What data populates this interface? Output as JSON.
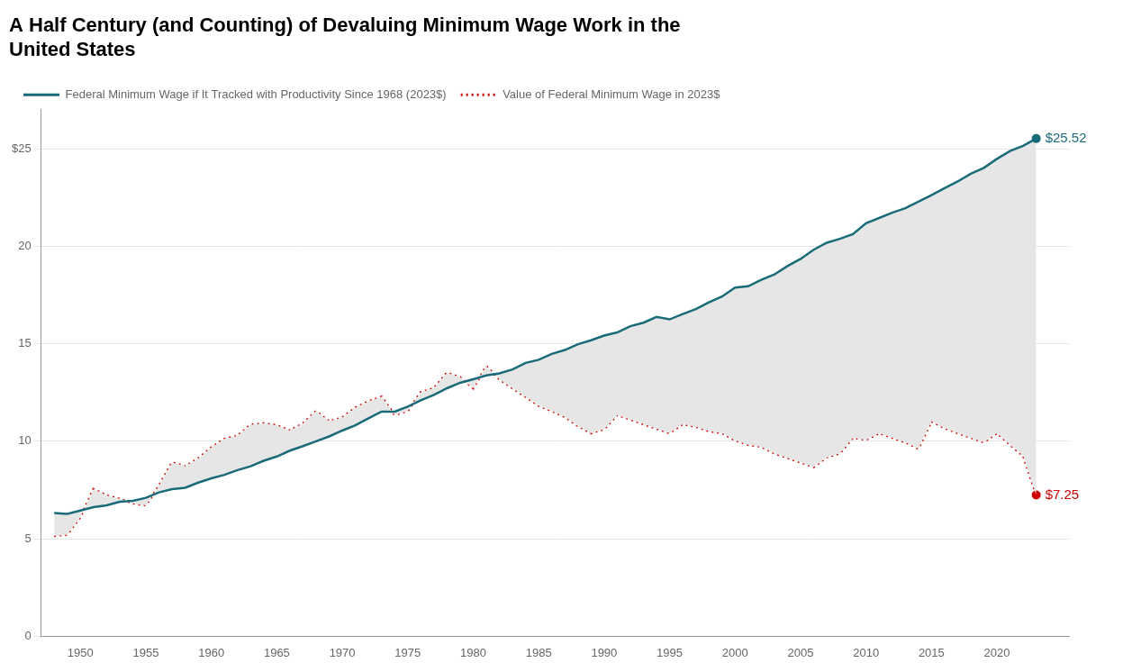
{
  "chart_data": {
    "type": "line",
    "title": "A Half Century (and Counting) of Devaluing Minimum Wage Work in the\nUnited States",
    "x": [
      1948,
      1949,
      1950,
      1951,
      1952,
      1953,
      1954,
      1955,
      1956,
      1957,
      1958,
      1959,
      1960,
      1961,
      1962,
      1963,
      1964,
      1965,
      1966,
      1967,
      1968,
      1969,
      1970,
      1971,
      1972,
      1973,
      1974,
      1975,
      1976,
      1977,
      1978,
      1979,
      1980,
      1981,
      1982,
      1983,
      1984,
      1985,
      1986,
      1987,
      1988,
      1989,
      1990,
      1991,
      1992,
      1993,
      1994,
      1995,
      1996,
      1997,
      1998,
      1999,
      2000,
      2001,
      2002,
      2003,
      2004,
      2005,
      2006,
      2007,
      2008,
      2009,
      2010,
      2011,
      2012,
      2013,
      2014,
      2015,
      2016,
      2017,
      2018,
      2019,
      2020,
      2021,
      2022,
      2023
    ],
    "series": [
      {
        "name": "Federal Minimum Wage if It Tracked with Productivity Since 1968 (2023$)",
        "color": "#1a6b7a",
        "line_style": "solid",
        "values": [
          6.32,
          6.28,
          6.45,
          6.62,
          6.72,
          6.9,
          6.95,
          7.1,
          7.38,
          7.55,
          7.62,
          7.88,
          8.1,
          8.28,
          8.52,
          8.72,
          9.0,
          9.22,
          9.52,
          9.75,
          10.0,
          10.25,
          10.55,
          10.82,
          11.18,
          11.52,
          11.52,
          11.78,
          12.1,
          12.38,
          12.72,
          13.0,
          13.18,
          13.38,
          13.48,
          13.68,
          14.02,
          14.18,
          14.48,
          14.68,
          14.98,
          15.18,
          15.42,
          15.58,
          15.9,
          16.08,
          16.38,
          16.25,
          16.52,
          16.78,
          17.12,
          17.42,
          17.88,
          17.95,
          18.28,
          18.55,
          18.98,
          19.35,
          19.82,
          20.18,
          20.38,
          20.62,
          21.18,
          21.45,
          21.72,
          21.95,
          22.28,
          22.62,
          22.98,
          23.32,
          23.72,
          24.02,
          24.48,
          24.88,
          25.15,
          25.52
        ]
      },
      {
        "name": "Value of Federal Minimum Wage in 2023$",
        "color": "#cc0000",
        "line_style": "dotted",
        "values": [
          5.15,
          5.22,
          6.12,
          7.55,
          7.22,
          7.05,
          6.82,
          6.72,
          7.72,
          8.92,
          8.72,
          9.12,
          9.68,
          10.12,
          10.28,
          10.85,
          10.92,
          10.82,
          10.55,
          10.92,
          11.55,
          11.02,
          11.22,
          11.72,
          12.05,
          12.28,
          11.35,
          11.55,
          12.52,
          12.72,
          13.52,
          13.28,
          12.72,
          13.85,
          13.18,
          12.72,
          12.28,
          11.82,
          11.55,
          11.25,
          10.78,
          10.42,
          10.62,
          11.35,
          11.12,
          10.88,
          10.65,
          10.42,
          10.88,
          10.75,
          10.52,
          10.42,
          10.05,
          9.82,
          9.72,
          9.38,
          9.15,
          8.92,
          8.68,
          9.18,
          9.38,
          10.18,
          10.08,
          10.42,
          10.18,
          9.95,
          9.62,
          11.02,
          10.68,
          10.42,
          10.18,
          9.95,
          10.42,
          9.82,
          9.25,
          7.25
        ]
      }
    ],
    "xlim": [
      1947,
      2025.5
    ],
    "xticks": [
      1950,
      1955,
      1960,
      1965,
      1970,
      1975,
      1980,
      1985,
      1990,
      1995,
      2000,
      2005,
      2010,
      2015,
      2020
    ],
    "ylim": [
      0,
      27
    ],
    "yticks": [
      0,
      5,
      10,
      15,
      20,
      {
        "value": 25,
        "label": "$25"
      }
    ],
    "grid": "y",
    "legend": "upper left",
    "annotations": [
      {
        "text": "$25.52",
        "x": 2023,
        "y": 25.52,
        "color": "#1a6b7a"
      },
      {
        "text": "$7.25",
        "x": 2023,
        "y": 7.25,
        "color": "#cc0000"
      }
    ]
  }
}
